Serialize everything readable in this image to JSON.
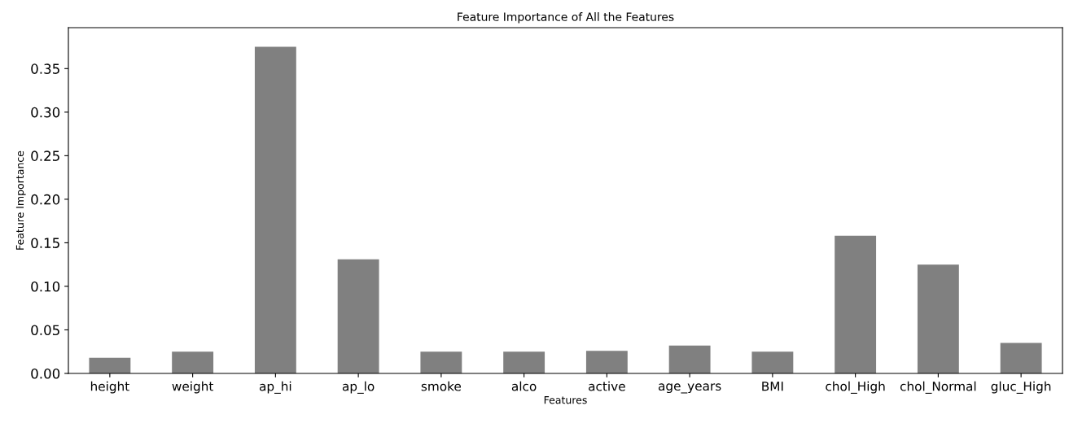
{
  "chart_data": {
    "type": "bar",
    "title": "Feature Importance of All the Features",
    "xlabel": "Features",
    "ylabel": "Feature Importance",
    "categories": [
      "height",
      "weight",
      "ap_hi",
      "ap_lo",
      "smoke",
      "alco",
      "active",
      "age_years",
      "BMI",
      "chol_High",
      "chol_Normal",
      "gluc_High"
    ],
    "values": [
      0.018,
      0.025,
      0.375,
      0.131,
      0.025,
      0.025,
      0.026,
      0.032,
      0.025,
      0.158,
      0.125,
      0.035
    ],
    "color": "#808080",
    "ylim": [
      0,
      0.397
    ],
    "yticks": [
      {
        "value": 0,
        "label": "0.00"
      },
      {
        "value": 0.05,
        "label": "0.05"
      },
      {
        "value": 0.1,
        "label": "0.10"
      },
      {
        "value": 0.15,
        "label": "0.15"
      },
      {
        "value": 0.2,
        "label": "0.20"
      },
      {
        "value": 0.25,
        "label": "0.25"
      },
      {
        "value": 0.3,
        "label": "0.30"
      },
      {
        "value": 0.35,
        "label": "0.35"
      }
    ],
    "grid": false
  }
}
